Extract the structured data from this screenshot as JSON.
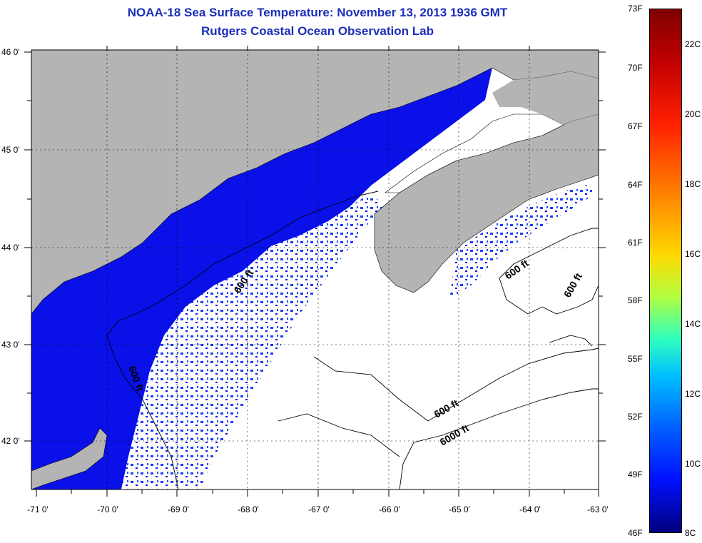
{
  "title": {
    "line1": "NOAA-18 Sea Surface Temperature:  November 13, 2013 1936 GMT",
    "line2": "Rutgers Coastal Ocean Observation Lab"
  },
  "lat_labels": [
    "46 0'",
    "45 0'",
    "44 0'",
    "43 0'",
    "42 0'"
  ],
  "lon_labels": [
    "-71 0'",
    "-70 0'",
    "-69 0'",
    "-68 0'",
    "-67 0'",
    "-66 0'",
    "-65 0'",
    "-64 0'",
    "-63 0'"
  ],
  "contour_labels": [
    "600 ft",
    "600 ft",
    "600 ft",
    "600 ft",
    "600 ft",
    "6000 ft"
  ],
  "colorbar": {
    "fahrenheit": [
      "73F",
      "70F",
      "67F",
      "64F",
      "61F",
      "58F",
      "55F",
      "52F",
      "49F",
      "46F"
    ],
    "celsius": [
      "22C",
      "20C",
      "18C",
      "16C",
      "14C",
      "12C",
      "10C",
      "8C"
    ],
    "colors": [
      "#7f0000",
      "#c00000",
      "#ff2000",
      "#ff8000",
      "#ffd800",
      "#b0ff40",
      "#30ffc0",
      "#00c0ff",
      "#0060ff",
      "#0010ff",
      "#00007f"
    ]
  },
  "colors": {
    "land": "#b4b4b4",
    "no_data": "#ffffff",
    "sst_coastal": "#0a10e8",
    "sst_offshore": "#1e3cff",
    "title": "#1c2fb8"
  }
}
